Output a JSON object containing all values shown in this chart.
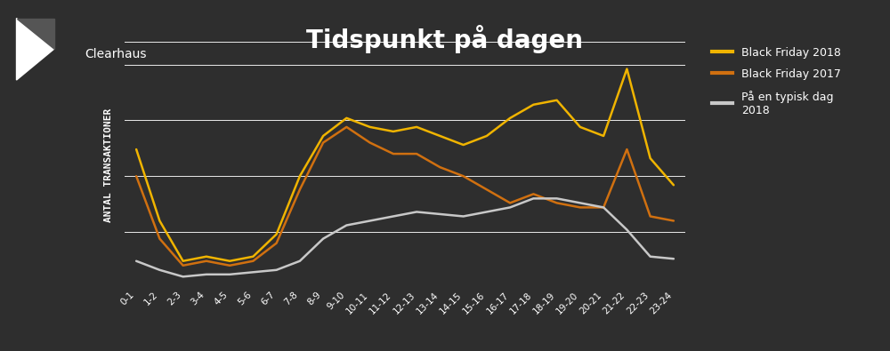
{
  "title": "Tidspunkt på dagen",
  "ylabel": "ANTAL TRANSAKTIONER",
  "background_color": "#2e2e2e",
  "text_color": "#ffffff",
  "grid_color": "#ffffff",
  "x_labels": [
    "0-1",
    "1-2",
    "2-3",
    "3-4",
    "4-5",
    "5-6",
    "6-7",
    "7-8",
    "8-9",
    "9-10",
    "10-11",
    "11-12",
    "12-13",
    "13-14",
    "14-15",
    "15-16",
    "16-17",
    "17-18",
    "18-19",
    "19-20",
    "20-21",
    "21-22",
    "22-23",
    "23-24"
  ],
  "series": [
    {
      "name": "Black Friday 2018",
      "color": "#f0b400",
      "linewidth": 1.8,
      "values": [
        62,
        30,
        12,
        14,
        12,
        14,
        24,
        50,
        68,
        76,
        72,
        70,
        72,
        68,
        64,
        68,
        76,
        82,
        84,
        72,
        68,
        98,
        58,
        46
      ]
    },
    {
      "name": "Black Friday 2017",
      "color": "#d07010",
      "linewidth": 1.8,
      "values": [
        50,
        22,
        10,
        12,
        10,
        12,
        20,
        44,
        65,
        72,
        65,
        60,
        60,
        54,
        50,
        44,
        38,
        42,
        38,
        36,
        36,
        62,
        32,
        30
      ]
    },
    {
      "name": "På en typisk dag\n2018",
      "color": "#c8c8c8",
      "linewidth": 1.8,
      "values": [
        12,
        8,
        5,
        6,
        6,
        7,
        8,
        12,
        22,
        28,
        30,
        32,
        34,
        33,
        32,
        34,
        36,
        40,
        40,
        38,
        36,
        26,
        14,
        13
      ]
    }
  ],
  "logo_text": "Clearhaus",
  "ylim": [
    0,
    110
  ],
  "yticks": [
    0,
    25,
    50,
    75,
    100
  ],
  "figsize": [
    10.0,
    3.95
  ],
  "dpi": 100,
  "title_fontsize": 20,
  "label_fontsize": 8,
  "tick_fontsize": 7.5,
  "legend_fontsize": 9
}
